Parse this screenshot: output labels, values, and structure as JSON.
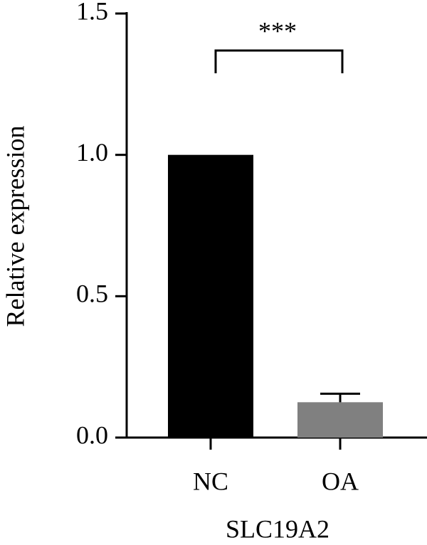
{
  "chart_data": {
    "type": "bar",
    "xlabel": "SLC19A2",
    "ylabel": "Relative expression",
    "categories": [
      "NC",
      "OA"
    ],
    "values": [
      1.0,
      0.125
    ],
    "errors": [
      null,
      0.03
    ],
    "colors": [
      "#000000",
      "#808080"
    ],
    "ylim": [
      0,
      1.5
    ],
    "yticks": [
      {
        "value": 0,
        "label": "0.0"
      },
      0.5,
      {
        "value": 1,
        "label": "1.0"
      },
      1.5
    ],
    "annotation": "***"
  }
}
